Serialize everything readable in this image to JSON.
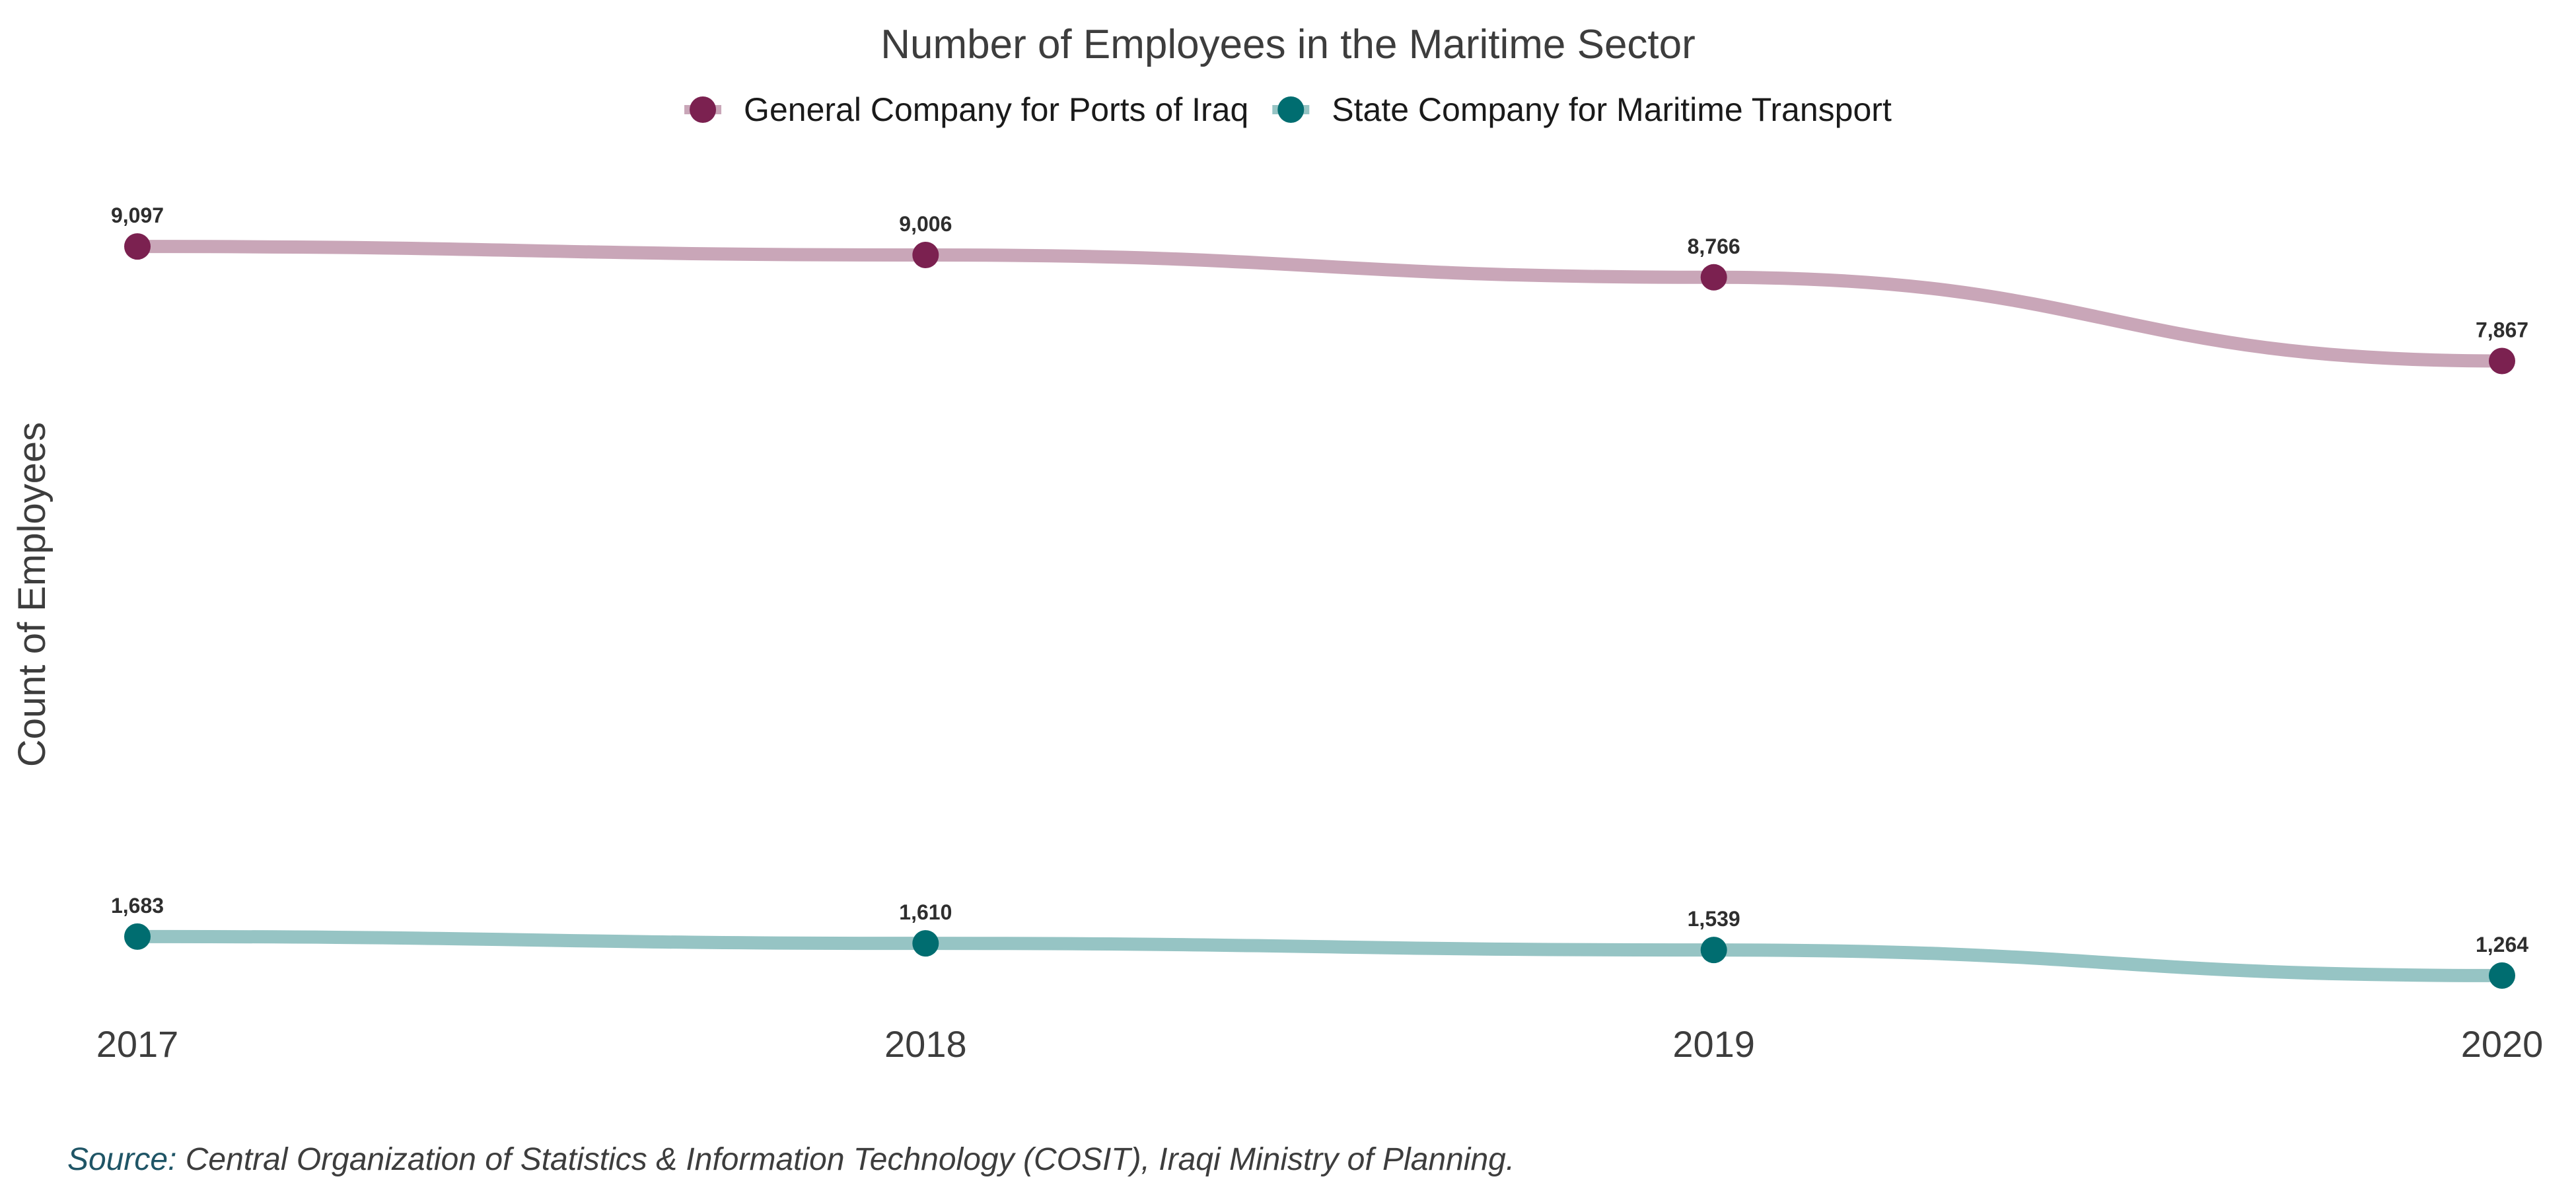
{
  "chart_data": {
    "type": "line",
    "title": "Number of Employees in the Maritime Sector",
    "xlabel": "",
    "ylabel": "Count of Employees",
    "x": [
      "2017",
      "2018",
      "2019",
      "2020"
    ],
    "ylim": [
      1100,
      9900
    ],
    "grid": false,
    "legend_position": "top-center",
    "smooth": true,
    "series": [
      {
        "name": "General Company for Ports of Iraq",
        "values": [
          9097,
          9006,
          8766,
          7867
        ],
        "labels": [
          "9,097",
          "9,006",
          "8,766",
          "7,867"
        ],
        "point_color": "#7b2150",
        "line_color": "#c9a6b8"
      },
      {
        "name": "State Company for Maritime Transport",
        "values": [
          1683,
          1610,
          1539,
          1264
        ],
        "labels": [
          "1,683",
          "1,610",
          "1,539",
          "1,264"
        ],
        "point_color": "#006d70",
        "line_color": "#96c4c4"
      }
    ]
  },
  "source": {
    "prefix": "Source:",
    "text": " Central Organization of Statistics & Information Technology (COSIT), Iraqi Ministry of Planning."
  }
}
